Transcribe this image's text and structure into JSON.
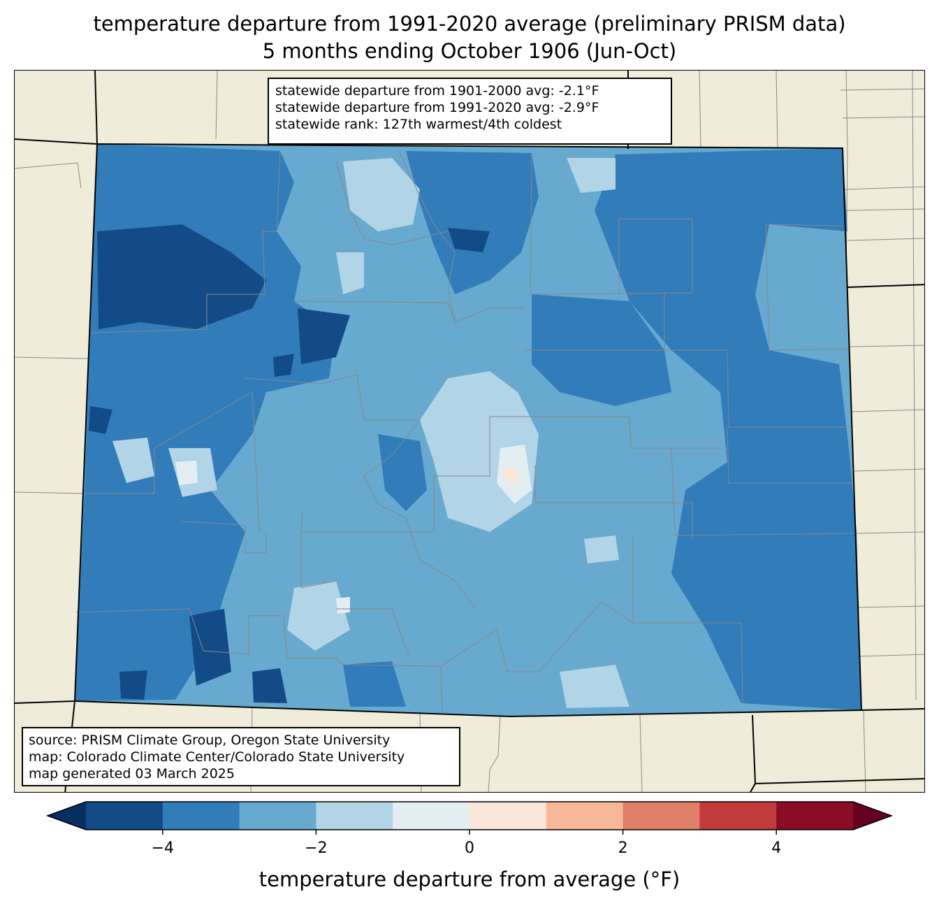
{
  "title_line1": "temperature departure from 1991-2020 average (preliminary PRISM data)",
  "title_line2": "5 months ending October 1906 (Jun-Oct)",
  "stats": {
    "line1": "statewide departure from 1901-2000 avg: -2.1°F",
    "line2": "statewide departure from 1991-2020 avg: -2.9°F",
    "line3": "statewide rank: 127th warmest/4th coldest"
  },
  "source": {
    "line1": "source: PRISM Climate Group, Oregon State University",
    "line2": "map: Colorado Climate Center/Colorado State University",
    "line3": "map generated 03 March 2025"
  },
  "colorbar": {
    "title": "temperature departure from average (°F)",
    "range": [
      -5,
      5
    ],
    "ticks": [
      {
        "value": -4,
        "label": "−4"
      },
      {
        "value": -2,
        "label": "−2"
      },
      {
        "value": 0,
        "label": "0"
      },
      {
        "value": 2,
        "label": "2"
      },
      {
        "value": 4,
        "label": "4"
      }
    ],
    "bins": [
      {
        "from": -5,
        "to": -4,
        "color": "#134b87"
      },
      {
        "from": -4,
        "to": -3,
        "color": "#327cba"
      },
      {
        "from": -3,
        "to": -2,
        "color": "#68a9cf"
      },
      {
        "from": -2,
        "to": -1,
        "color": "#b1d4e6"
      },
      {
        "from": -1,
        "to": 0,
        "color": "#e3eef3"
      },
      {
        "from": 0,
        "to": 1,
        "color": "#fae5d9"
      },
      {
        "from": 1,
        "to": 2,
        "color": "#f7b899"
      },
      {
        "from": 2,
        "to": 3,
        "color": "#e0806a"
      },
      {
        "from": 3,
        "to": 4,
        "color": "#c23b3b"
      },
      {
        "from": 4,
        "to": 5,
        "color": "#8a0d25"
      }
    ],
    "under_color": "#053061",
    "over_color": "#67001f"
  },
  "colors": {
    "land": "#efedd9",
    "state_fill": "#68a9cf",
    "county_line": "#888888"
  }
}
